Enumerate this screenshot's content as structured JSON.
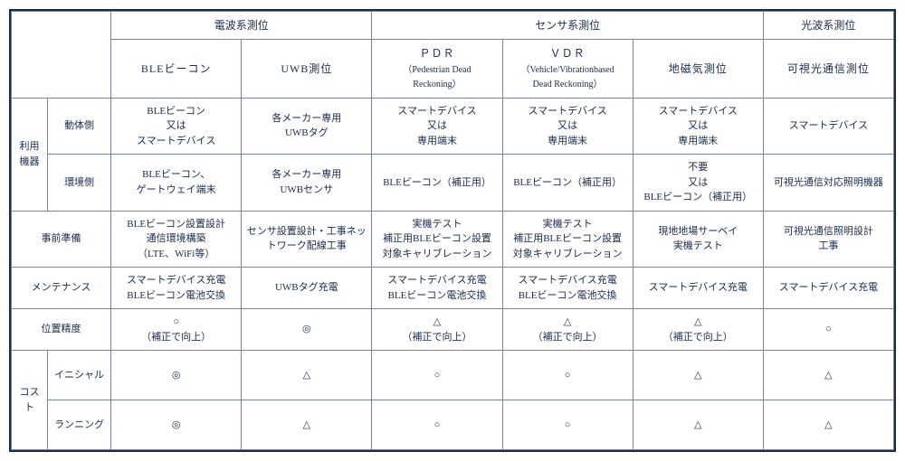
{
  "headerGroups": {
    "g1": "電波系測位",
    "g2": "センサ系測位",
    "g3": "光波系測位"
  },
  "headerCols": {
    "c1": {
      "line1": "BLEビーコン"
    },
    "c2": {
      "line1": "UWB測位"
    },
    "c3": {
      "line1": "ＰＤＲ",
      "line2": "（Pedestrian Dead",
      "line3": "Reckoning）"
    },
    "c4": {
      "line1": "ＶＤＲ",
      "line2": "（Vehicle/Vibrationbased",
      "line3": "Dead Reckoning）"
    },
    "c5": {
      "line1": "地磁気測位"
    },
    "c6": {
      "line1": "可視光通信測位"
    }
  },
  "rowLabels": {
    "equip": "利用機器",
    "equip_mobile": "動体側",
    "equip_env": "環境側",
    "prep": "事前準備",
    "maint": "メンテナンス",
    "accuracy": "位置精度",
    "cost": "コスト",
    "cost_initial": "イニシャル",
    "cost_running": "ランニング"
  },
  "cells": {
    "equip_mobile": {
      "c1": "BLEビーコン\n又は\nスマートデバイス",
      "c2": "各メーカー専用\nUWBタグ",
      "c3": "スマートデバイス\n又は\n専用端末",
      "c4": "スマートデバイス\n又は\n専用端末",
      "c5": "スマートデバイス\n又は\n専用端末",
      "c6": "スマートデバイス"
    },
    "equip_env": {
      "c1": "BLEビーコン、\nゲートウェイ端末",
      "c2": "各メーカー専用\nUWBセンサ",
      "c3": "BLEビーコン（補正用）",
      "c4": "BLEビーコン（補正用）",
      "c5": "不要\n又は\nBLEビーコン（補正用）",
      "c6": "可視光通信対応照明機器"
    },
    "prep": {
      "c1": "BLEビーコン設置設計\n通信環境構築\n（LTE、WiFi等）",
      "c2": "センサ設置設計・工事ネッ\nトワーク配線工事",
      "c3": "実機テスト\n補正用BLEビーコン設置\n対象キャリブレーション",
      "c4": "実機テスト\n補正用BLEビーコン設置\n対象キャリブレーション",
      "c5": "現地地場サーベイ\n実機テスト",
      "c6": "可視光通信照明設計\n工事"
    },
    "maint": {
      "c1": "スマートデバイス充電\nBLEビーコン電池交換",
      "c2": "UWBタグ充電",
      "c3": "スマートデバイス充電\nBLEビーコン電池交換",
      "c4": "スマートデバイス充電\nBLEビーコン電池交換",
      "c5": "スマートデバイス充電",
      "c6": "スマートデバイス充電"
    },
    "accuracy": {
      "c1": "○\n（補正で向上）",
      "c2": "◎",
      "c3": "△\n（補正で向上）",
      "c4": "△\n（補正で向上）",
      "c5": "△\n（補正で向上）",
      "c6": "○"
    },
    "cost_initial": {
      "c1": "◎",
      "c2": "△",
      "c3": "○",
      "c4": "○",
      "c5": "△",
      "c6": "△"
    },
    "cost_running": {
      "c1": "◎",
      "c2": "△",
      "c3": "○",
      "c4": "○",
      "c5": "△",
      "c6": "△"
    }
  }
}
